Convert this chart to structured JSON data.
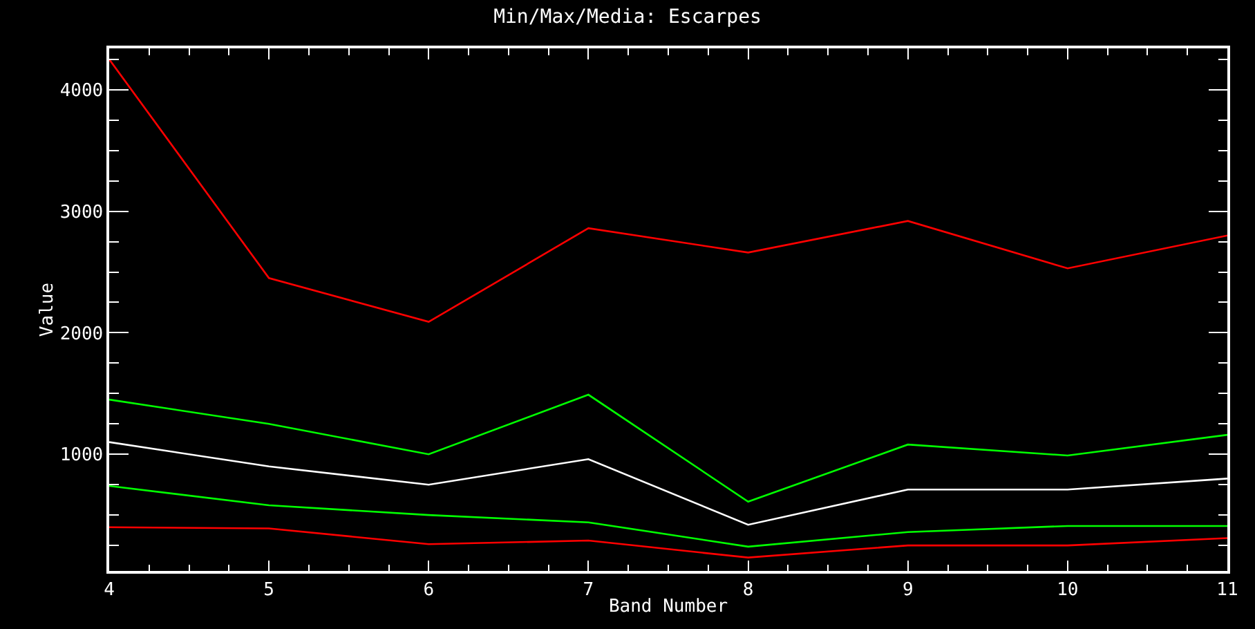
{
  "chart_data": {
    "type": "line",
    "title": "Min/Max/Media: Escarpes",
    "xlabel": "Band Number",
    "ylabel": "Value",
    "x": [
      4,
      5,
      6,
      7,
      8,
      9,
      10,
      11
    ],
    "series": [
      {
        "color": "#ff0000",
        "values": [
          4250,
          2450,
          2090,
          2860,
          2660,
          2920,
          2530,
          2800
        ]
      },
      {
        "color": "#00ff00",
        "values": [
          1450,
          1250,
          1000,
          1490,
          610,
          1080,
          990,
          1160
        ]
      },
      {
        "color": "#ffffff",
        "values": [
          1100,
          900,
          750,
          960,
          420,
          710,
          710,
          800
        ]
      },
      {
        "color": "#00ff00",
        "values": [
          740,
          580,
          500,
          440,
          240,
          360,
          410,
          410
        ]
      },
      {
        "color": "#ff0000",
        "values": [
          400,
          390,
          260,
          290,
          150,
          250,
          250,
          310
        ]
      }
    ],
    "xlim": [
      4,
      11
    ],
    "xticks": [
      4,
      5,
      6,
      7,
      8,
      9,
      10,
      11
    ],
    "ylim": [
      40,
      4340
    ],
    "yticks": [
      1000,
      2000,
      3000,
      4000
    ],
    "marker": "none",
    "line_style": "solid"
  }
}
